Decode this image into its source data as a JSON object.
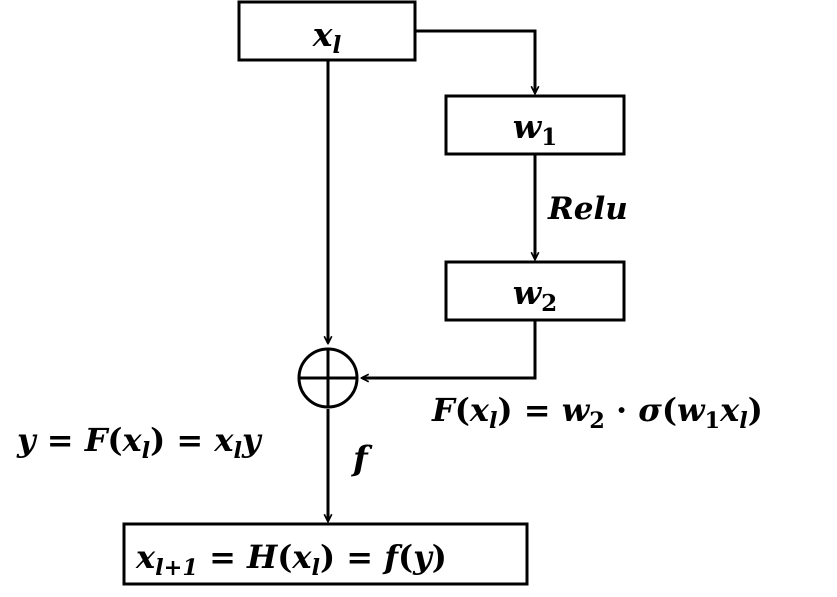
{
  "boxes": {
    "input": {
      "var": "x",
      "sub": "l"
    },
    "w1": {
      "var": "w",
      "sub": "1"
    },
    "w2": {
      "var": "w",
      "sub": "2"
    },
    "output": {
      "lhs_var": "x",
      "lhs_sub": "l+1",
      "eq1": " = ",
      "H": "H",
      "paren_open": "(",
      "x": "x",
      "x_sub": "l",
      "paren_close": ")",
      "eq2": " = ",
      "f": "f",
      "f_open": "(",
      "y": "y",
      "f_close": ")"
    }
  },
  "labels": {
    "activation": "Relu",
    "output_fn": "f",
    "residual": {
      "F": "F",
      "open": "(",
      "x": "x",
      "x_sub": "l",
      "close": ")",
      "eq": " = ",
      "w2": "w",
      "w2_sub": "2",
      "dot": " · ",
      "sigma": "σ",
      "open2": "(",
      "w1": "w",
      "w1_sub": "1",
      "x2": "x",
      "x2_sub": "l",
      "close2": ")"
    },
    "y_eq": {
      "y": "y",
      "eq": " = ",
      "F": "F",
      "open": "(",
      "x": "x",
      "x_sub": "l",
      "close": ")",
      "eq2": " = ",
      "x2": "x",
      "x2_sub": "l",
      "y2": "y"
    }
  },
  "colors": {
    "stroke": "#000000",
    "background": "#ffffff"
  }
}
